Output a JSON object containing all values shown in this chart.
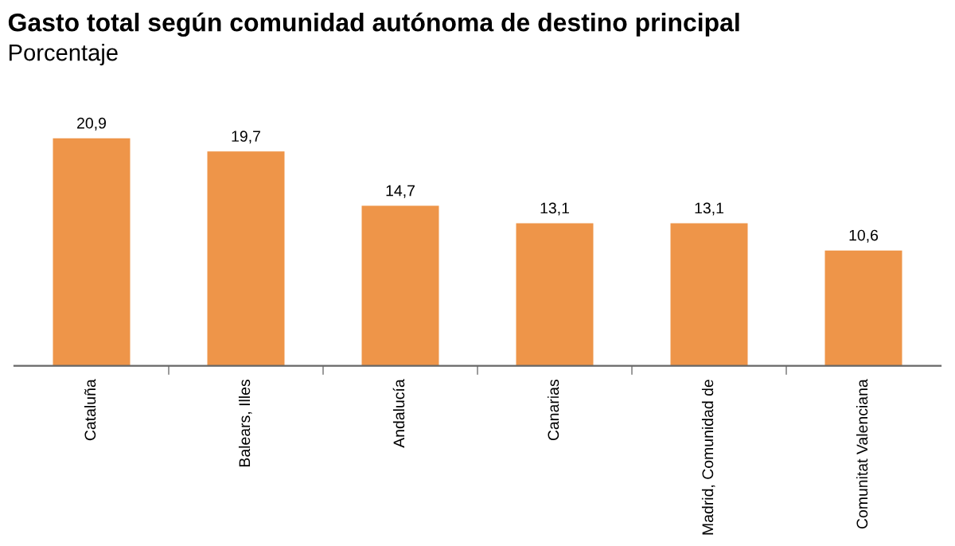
{
  "chart_data": {
    "type": "bar",
    "title": "Gasto total según comunidad autónoma de destino principal",
    "subtitle": "Porcentaje",
    "categories": [
      "Cataluña",
      "Balears, Illes",
      "Andalucía",
      "Canarias",
      "Madrid, Comunidad de",
      "Comunitat Valenciana"
    ],
    "values": [
      20.9,
      19.7,
      14.7,
      13.1,
      13.1,
      10.6
    ],
    "value_labels": [
      "20,9",
      "19,7",
      "14,7",
      "13,1",
      "13,1",
      "10,6"
    ],
    "color": "#ee9549",
    "tick_labels": "x",
    "grid": false,
    "legend": false
  }
}
